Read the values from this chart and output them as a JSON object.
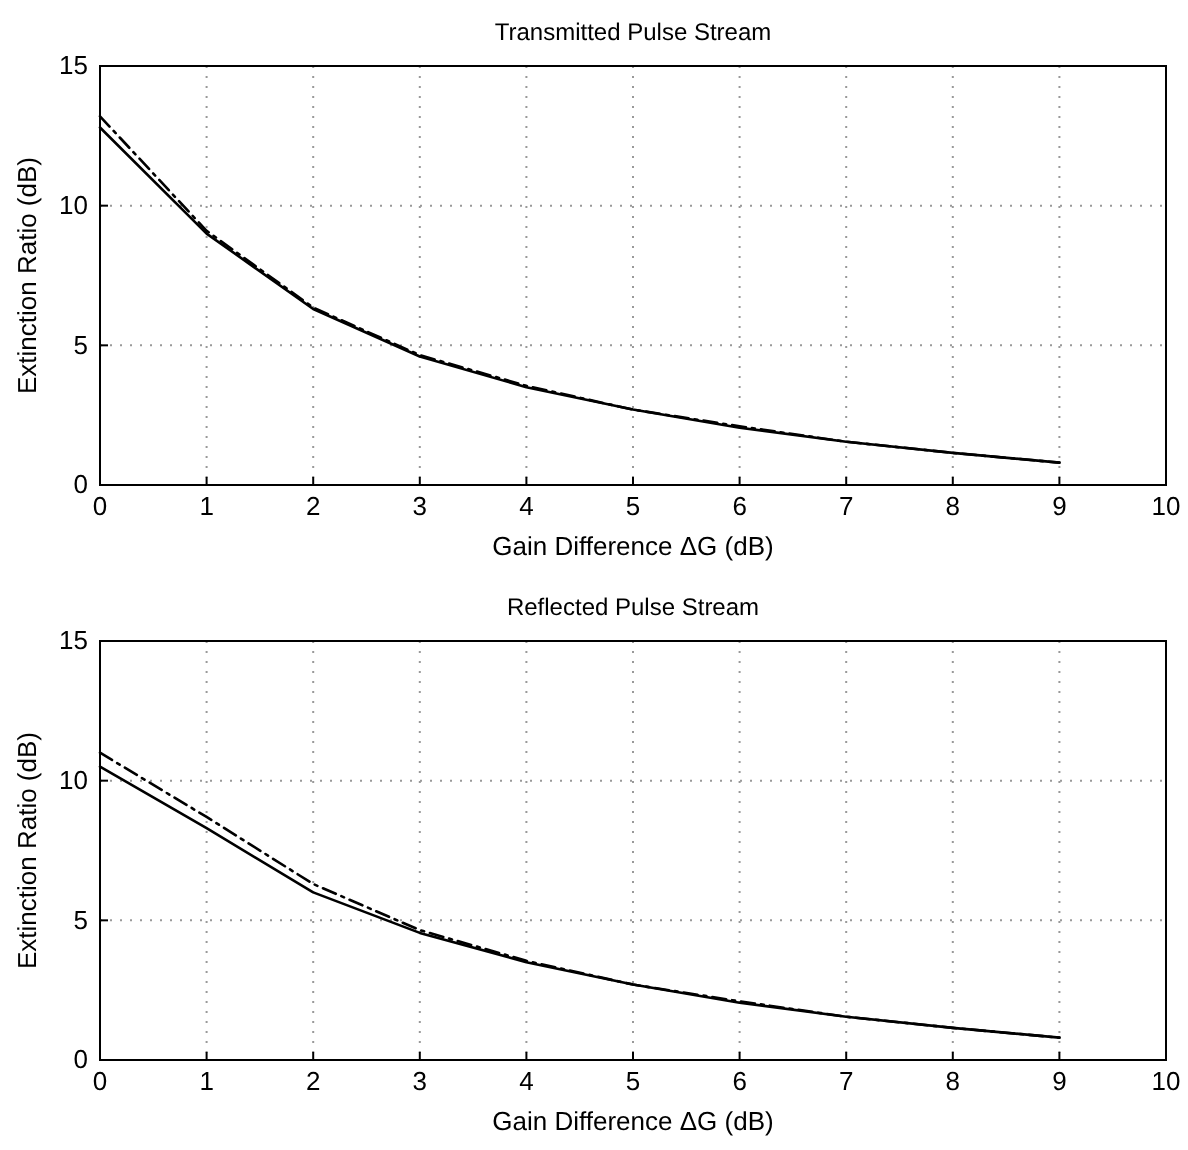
{
  "chart_data": [
    {
      "type": "line",
      "title": "Transmitted Pulse Stream",
      "xlabel": "Gain Difference ΔG (dB)",
      "ylabel": "Extinction Ratio (dB)",
      "x": [
        0,
        1,
        2,
        3,
        4,
        5,
        6,
        7,
        8,
        9
      ],
      "xlim": [
        0,
        10
      ],
      "xticks": [
        0,
        1,
        2,
        3,
        4,
        5,
        6,
        7,
        8,
        9,
        10
      ],
      "ylim": [
        0,
        15
      ],
      "yticks": [
        0,
        5,
        10,
        15
      ],
      "grid": true,
      "marker": "none",
      "series": [
        {
          "color": "#000000",
          "line_style": "solid",
          "values": [
            12.8,
            9.0,
            6.3,
            4.6,
            3.5,
            2.7,
            2.05,
            1.55,
            1.15,
            0.8
          ]
        },
        {
          "color": "#000000",
          "line_style": "dashed",
          "values": [
            13.2,
            9.1,
            6.35,
            4.65,
            3.55,
            2.7,
            2.1,
            1.55,
            1.15,
            0.8
          ]
        }
      ]
    },
    {
      "type": "line",
      "title": "Reflected Pulse Stream",
      "xlabel": "Gain Difference ΔG (dB)",
      "ylabel": "Extinction Ratio (dB)",
      "x": [
        0,
        1,
        2,
        3,
        4,
        5,
        6,
        7,
        8,
        9
      ],
      "xlim": [
        0,
        10
      ],
      "xticks": [
        0,
        1,
        2,
        3,
        4,
        5,
        6,
        7,
        8,
        9,
        10
      ],
      "ylim": [
        0,
        15
      ],
      "yticks": [
        0,
        5,
        10,
        15
      ],
      "grid": true,
      "marker": "none",
      "series": [
        {
          "color": "#000000",
          "line_style": "solid",
          "values": [
            10.5,
            8.3,
            6.0,
            4.55,
            3.5,
            2.7,
            2.05,
            1.55,
            1.15,
            0.8
          ]
        },
        {
          "color": "#000000",
          "line_style": "dashed",
          "values": [
            11.0,
            8.7,
            6.3,
            4.65,
            3.55,
            2.7,
            2.1,
            1.55,
            1.15,
            0.8
          ]
        }
      ]
    }
  ]
}
